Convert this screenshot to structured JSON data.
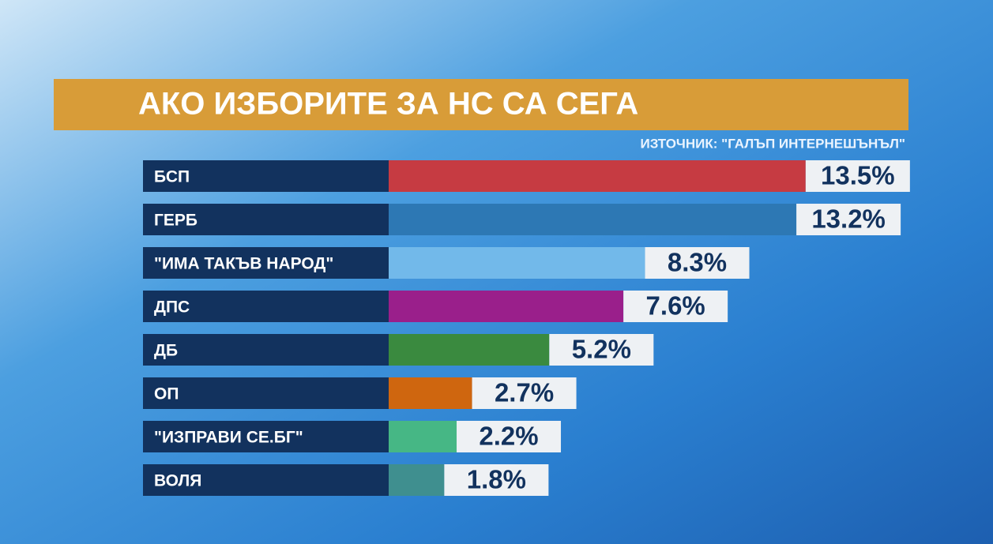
{
  "chart_data": {
    "type": "bar",
    "orientation": "horizontal",
    "title": "АКО ИЗБОРИТЕ ЗА НС СА СЕГА",
    "source": "ИЗТОЧНИК: \"ГАЛЪП ИНТЕРНЕШЪНЪЛ\"",
    "categories": [
      "БСП",
      "ГЕРБ",
      "\"ИМА ТАКЪВ НАРОД\"",
      "ДПС",
      "ДБ",
      "ОП",
      "\"ИЗПРАВИ СЕ.БГ\"",
      "ВОЛЯ"
    ],
    "values": [
      13.5,
      13.2,
      8.3,
      7.6,
      5.2,
      2.7,
      2.2,
      1.8
    ],
    "value_labels": [
      "13.5%",
      "13.2%",
      "8.3%",
      "7.6%",
      "5.2%",
      "2.7%",
      "2.2%",
      "1.8%"
    ],
    "colors": [
      "#c63b42",
      "#2d78b4",
      "#72b9ea",
      "#9a1f8b",
      "#3a8a3f",
      "#cf660f",
      "#46b785",
      "#3f8f8f"
    ]
  }
}
